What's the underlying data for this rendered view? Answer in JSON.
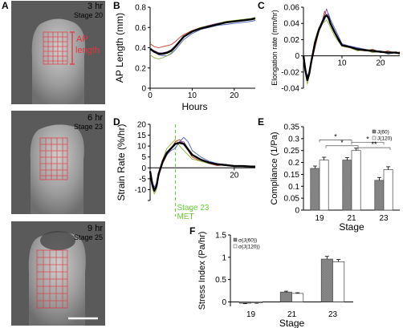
{
  "panel_a": {
    "letter": "A",
    "images": [
      {
        "time": "3 hr",
        "stage": "Stage 20",
        "annotation_line1": "AP",
        "annotation_line2": "length"
      },
      {
        "time": "6 hr",
        "stage": "Stage 23"
      },
      {
        "time": "9 hr",
        "stage": "Stage 25"
      }
    ],
    "colors": {
      "grid": "#e8323c",
      "embryo_dark": "#3a3a3a",
      "embryo_light": "#b8b8b8",
      "scale_bar": "#ffffff"
    }
  },
  "chart_data": [
    {
      "panel": "B",
      "type": "line",
      "xlabel": "Hours",
      "ylabel": "AP Length (mm)",
      "xlim": [
        0,
        25
      ],
      "ylim": [
        0,
        0.8
      ],
      "xticks": [
        0,
        10,
        20
      ],
      "yticks": [
        0,
        0.2,
        0.4,
        0.6,
        0.8
      ],
      "series": [
        {
          "color": "#c0392b",
          "x": [
            0,
            1,
            2,
            3,
            4,
            5,
            6,
            7,
            8,
            10,
            12,
            14,
            16,
            18,
            20,
            22,
            24,
            25
          ],
          "y": [
            0.44,
            0.41,
            0.4,
            0.41,
            0.42,
            0.43,
            0.46,
            0.5,
            0.53,
            0.57,
            0.6,
            0.62,
            0.64,
            0.65,
            0.66,
            0.67,
            0.68,
            0.69
          ]
        },
        {
          "color": "#4a5fc1",
          "x": [
            0,
            1,
            2,
            3,
            4,
            5,
            6,
            7,
            8,
            10,
            12,
            14,
            16,
            18,
            20,
            22,
            24,
            25
          ],
          "y": [
            0.4,
            0.36,
            0.33,
            0.32,
            0.32,
            0.34,
            0.38,
            0.43,
            0.48,
            0.54,
            0.58,
            0.6,
            0.62,
            0.63,
            0.64,
            0.65,
            0.66,
            0.67
          ]
        },
        {
          "color": "#8fb33a",
          "x": [
            0,
            1,
            2,
            3,
            4,
            5,
            6,
            7,
            8,
            10,
            12,
            14,
            16,
            18,
            20,
            22,
            24,
            25
          ],
          "y": [
            0.33,
            0.3,
            0.29,
            0.3,
            0.32,
            0.35,
            0.4,
            0.45,
            0.5,
            0.56,
            0.6,
            0.62,
            0.64,
            0.66,
            0.67,
            0.68,
            0.69,
            0.7
          ]
        },
        {
          "color": "#8e44ad",
          "x": [
            0,
            1,
            2,
            3,
            4,
            5,
            6,
            7,
            8,
            10,
            12,
            14,
            16,
            18,
            20,
            22,
            24,
            25
          ],
          "y": [
            0.39,
            0.37,
            0.35,
            0.35,
            0.36,
            0.38,
            0.42,
            0.47,
            0.51,
            0.56,
            0.59,
            0.62,
            0.64,
            0.65,
            0.66,
            0.67,
            0.68,
            0.69
          ]
        },
        {
          "color": "#000000",
          "bold": true,
          "x": [
            0,
            1,
            2,
            3,
            4,
            5,
            6,
            7,
            8,
            10,
            12,
            14,
            16,
            18,
            20,
            22,
            24,
            25
          ],
          "y": [
            0.39,
            0.36,
            0.34,
            0.34,
            0.35,
            0.37,
            0.41,
            0.46,
            0.51,
            0.56,
            0.59,
            0.61,
            0.63,
            0.65,
            0.66,
            0.67,
            0.68,
            0.69
          ]
        }
      ]
    },
    {
      "panel": "C",
      "type": "line",
      "xlabel": "",
      "ylabel": "Elongation rate (mm/hr)",
      "xlim": [
        0,
        25
      ],
      "ylim": [
        -0.04,
        0.06
      ],
      "xticks": [
        10,
        20
      ],
      "yticks": [
        -0.04,
        -0.02,
        0,
        0.02,
        0.04,
        0.06
      ],
      "ytick_labels": [
        "-0.04",
        "-0.02",
        "0",
        "0.02",
        "0.04",
        "0.06"
      ],
      "series": [
        {
          "color": "#c0392b",
          "x": [
            0,
            0.5,
            1,
            1.5,
            2,
            3,
            4,
            5,
            5.5,
            6,
            6.5,
            7,
            8,
            9,
            10,
            12,
            14,
            16,
            18,
            20,
            22,
            24,
            25
          ],
          "y": [
            0.0,
            -0.02,
            -0.03,
            -0.02,
            -0.01,
            0.01,
            0.03,
            0.045,
            0.055,
            0.05,
            0.045,
            0.04,
            0.03,
            0.02,
            0.012,
            0.01,
            0.008,
            0.006,
            0.008,
            0.004,
            0.006,
            0.003,
            0.005
          ]
        },
        {
          "color": "#4a5fc1",
          "x": [
            0,
            0.5,
            1,
            1.5,
            2,
            3,
            4,
            5,
            5.5,
            6,
            6.5,
            7,
            8,
            9,
            10,
            12,
            14,
            16,
            18,
            20,
            22,
            24,
            25
          ],
          "y": [
            0.0,
            -0.015,
            -0.025,
            -0.02,
            -0.01,
            0.015,
            0.03,
            0.04,
            0.045,
            0.05,
            0.052,
            0.045,
            0.035,
            0.025,
            0.015,
            0.012,
            0.01,
            0.008,
            0.004,
            0.006,
            0.002,
            0.004,
            0.003
          ]
        },
        {
          "color": "#8fb33a",
          "x": [
            0,
            0.5,
            1,
            1.5,
            2,
            3,
            4,
            5,
            5.5,
            6,
            6.5,
            7,
            8,
            9,
            10,
            12,
            14,
            16,
            18,
            20,
            22,
            24,
            25
          ],
          "y": [
            0.0,
            -0.02,
            -0.035,
            -0.025,
            -0.005,
            0.02,
            0.035,
            0.04,
            0.042,
            0.044,
            0.04,
            0.035,
            0.025,
            0.018,
            0.012,
            0.01,
            0.006,
            0.008,
            0.004,
            0.005,
            0.003,
            0.004,
            0.002
          ]
        },
        {
          "color": "#8e44ad",
          "x": [
            0,
            0.5,
            1,
            1.5,
            2,
            3,
            4,
            5,
            5.5,
            6,
            6.5,
            7,
            8,
            9,
            10,
            12,
            14,
            16,
            18,
            20,
            22,
            24,
            25
          ],
          "y": [
            0.0,
            -0.018,
            -0.03,
            -0.022,
            -0.008,
            0.018,
            0.032,
            0.045,
            0.05,
            0.058,
            0.05,
            0.042,
            0.03,
            0.02,
            0.013,
            0.011,
            0.009,
            0.007,
            0.006,
            0.005,
            0.004,
            0.004,
            0.003
          ]
        },
        {
          "color": "#000000",
          "bold": true,
          "x": [
            0,
            0.5,
            1,
            1.5,
            2,
            3,
            4,
            5,
            5.5,
            6,
            6.5,
            7,
            8,
            9,
            10,
            12,
            14,
            16,
            18,
            20,
            22,
            24,
            25
          ],
          "y": [
            0.0,
            -0.018,
            -0.03,
            -0.022,
            -0.008,
            0.016,
            0.032,
            0.043,
            0.048,
            0.05,
            0.047,
            0.04,
            0.03,
            0.021,
            0.013,
            0.011,
            0.008,
            0.007,
            0.006,
            0.005,
            0.004,
            0.004,
            0.003
          ]
        }
      ]
    },
    {
      "panel": "D",
      "type": "line",
      "xlabel": "",
      "ylabel": "Strain Rate (%/hr)",
      "xlim": [
        0,
        25
      ],
      "ylim": [
        -15,
        20
      ],
      "xticks": [
        20
      ],
      "yticks": [
        -15,
        -10,
        -5,
        0,
        5,
        10,
        15,
        20
      ],
      "ytick_labels": [
        "",
        "-10",
        "-5",
        "0",
        "5",
        "10",
        "15",
        "20"
      ],
      "annotation": {
        "x": 6,
        "line1": "Stage 23",
        "line2": "MET",
        "color": "#66cc33"
      },
      "series": [
        {
          "color": "#c0392b",
          "x": [
            0,
            0.5,
            1,
            1.5,
            2,
            3,
            4,
            5,
            6,
            7,
            8,
            9,
            10,
            12,
            14,
            16,
            18,
            20,
            22,
            24,
            25
          ],
          "y": [
            -2,
            -8,
            -11,
            -9,
            -4,
            2,
            6,
            9,
            12,
            13,
            11,
            8,
            5,
            3,
            2,
            1,
            1.5,
            0.5,
            1,
            0.5,
            0.8
          ]
        },
        {
          "color": "#4a5fc1",
          "x": [
            0,
            0.5,
            1,
            1.5,
            2,
            3,
            4,
            5,
            6,
            7,
            8,
            9,
            10,
            12,
            14,
            16,
            18,
            20,
            22,
            24,
            25
          ],
          "y": [
            -1,
            -6,
            -9,
            -7,
            -3,
            3,
            6,
            8,
            9,
            12,
            14,
            12,
            8,
            5,
            3,
            2,
            1.5,
            1,
            0.8,
            0.5,
            0.6
          ]
        },
        {
          "color": "#8fb33a",
          "x": [
            0,
            0.5,
            1,
            1.5,
            2,
            3,
            4,
            5,
            6,
            7,
            8,
            9,
            10,
            12,
            14,
            16,
            18,
            20,
            22,
            24,
            25
          ],
          "y": [
            -2,
            -9,
            -12,
            -10,
            -3,
            4,
            9,
            11,
            13,
            10,
            8,
            6,
            4,
            3,
            2,
            1.5,
            1,
            0.8,
            0.6,
            0.5,
            0.4
          ]
        },
        {
          "color": "#8e44ad",
          "x": [
            0,
            0.5,
            1,
            1.5,
            2,
            3,
            4,
            5,
            6,
            7,
            8,
            9,
            10,
            12,
            14,
            16,
            18,
            20,
            22,
            24,
            25
          ],
          "y": [
            -1.5,
            -7,
            -10,
            -8,
            -3,
            3,
            7,
            9,
            11,
            12,
            12,
            9,
            6,
            4,
            2.5,
            2,
            1.5,
            1,
            0.9,
            0.7,
            0.6
          ]
        },
        {
          "color": "#000000",
          "bold": true,
          "x": [
            0,
            0.5,
            1,
            1.5,
            2,
            3,
            4,
            5,
            6,
            7,
            8,
            9,
            10,
            12,
            14,
            16,
            18,
            20,
            22,
            24,
            25
          ],
          "y": [
            -1.5,
            -7.5,
            -10.5,
            -8.5,
            -3,
            3,
            7,
            9,
            11,
            11.5,
            11,
            8.5,
            6,
            3.8,
            2.4,
            1.6,
            1.3,
            0.8,
            0.8,
            0.6,
            0.6
          ]
        }
      ]
    },
    {
      "panel": "E",
      "type": "bar",
      "xlabel": "Stage",
      "ylabel": "Compliance (1/Pa)",
      "categories": [
        "19",
        "21",
        "23"
      ],
      "ylim": [
        0,
        0.35
      ],
      "yticks": [
        0,
        0.05,
        0.1,
        0.15,
        0.2,
        0.25,
        0.3,
        0.35
      ],
      "legend_position": "top-right",
      "series": [
        {
          "name": "J(60)",
          "color": "#808080",
          "values": [
            0.175,
            0.21,
            0.125
          ],
          "errors": [
            0.01,
            0.01,
            0.012
          ]
        },
        {
          "name": "J(120)",
          "color": "#ffffff",
          "values": [
            0.21,
            0.25,
            0.17
          ],
          "errors": [
            0.012,
            0.01,
            0.012
          ]
        }
      ],
      "significance": [
        {
          "from": 0,
          "to": 1,
          "level": 0.295,
          "label": "*"
        },
        {
          "from": 0,
          "to": 1,
          "level": 0.27,
          "label": "*",
          "offset": 0.2
        },
        {
          "from": 1,
          "to": 2,
          "level": 0.285,
          "label": "*"
        },
        {
          "from": 1,
          "to": 2,
          "level": 0.262,
          "label": "**",
          "offset": 0.2
        }
      ]
    },
    {
      "panel": "F",
      "type": "bar",
      "xlabel": "Stage",
      "ylabel": "Stress Index (Pa/hr)",
      "categories": [
        "19",
        "21",
        "23"
      ],
      "ylim": [
        -0.1,
        1.5
      ],
      "yticks": [
        0,
        0.5,
        1,
        1.5
      ],
      "ytick_labels": [
        "0",
        "0.5",
        "1",
        "1.5"
      ],
      "legend_position": "top-left",
      "series": [
        {
          "name": "σ(J(60))",
          "color": "#808080",
          "values": [
            -0.03,
            0.22,
            0.96
          ],
          "errors": [
            0.01,
            0.02,
            0.06
          ]
        },
        {
          "name": "σ(J(120))",
          "color": "#ffffff",
          "values": [
            -0.02,
            0.19,
            0.9
          ],
          "errors": [
            0.01,
            0.015,
            0.05
          ]
        }
      ]
    }
  ]
}
